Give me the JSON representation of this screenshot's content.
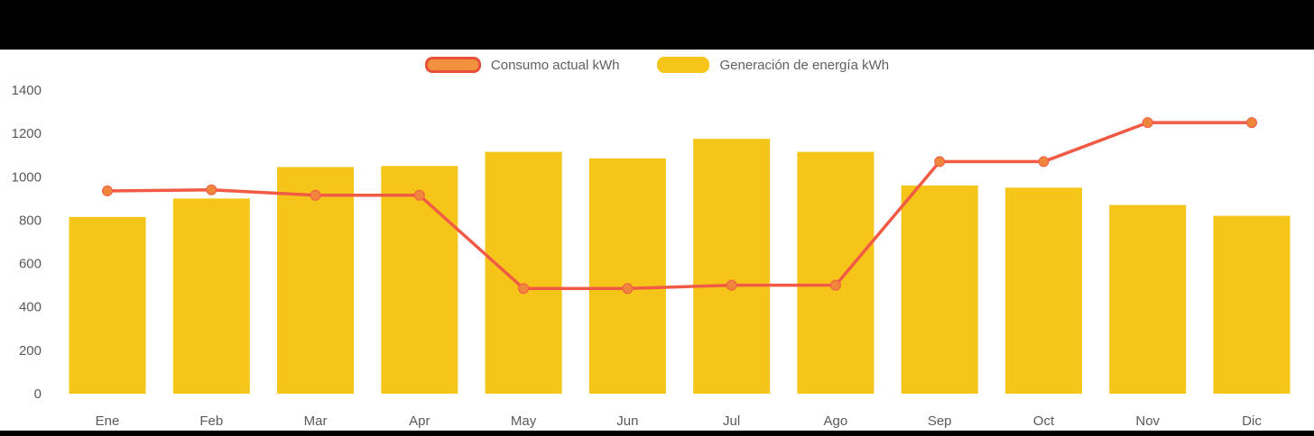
{
  "chart_data": {
    "type": "bar",
    "subtype": "bar+line combo",
    "categories": [
      "Ene",
      "Feb",
      "Mar",
      "Apr",
      "May",
      "Jun",
      "Jul",
      "Ago",
      "Sep",
      "Oct",
      "Nov",
      "Dic"
    ],
    "series": [
      {
        "name": "Consumo actual kWh",
        "type": "line",
        "values": [
          935,
          940,
          915,
          915,
          485,
          485,
          500,
          500,
          1070,
          1070,
          1250,
          1250
        ],
        "color": "#F15B46",
        "marker_color": "#F0863C"
      },
      {
        "name": "Generación de energía kWh",
        "type": "bar",
        "values": [
          815,
          900,
          1045,
          1050,
          1115,
          1085,
          1175,
          1115,
          960,
          950,
          870,
          820
        ],
        "color": "#F5C51A"
      }
    ],
    "title": "",
    "xlabel": "",
    "ylabel": "",
    "ylim": [
      0,
      1400
    ],
    "yticks": [
      0,
      200,
      400,
      600,
      800,
      1000,
      1200,
      1400
    ],
    "grid": false,
    "legend_position": "top-center"
  },
  "legend": {
    "consumo_label": "Consumo actual kWh",
    "generacion_label": "Generación de energía kWh"
  },
  "colors": {
    "bar": "#F5C51A",
    "line": "#F15B46",
    "marker": "#F0863C",
    "legend_consumo_fill": "#F2913D",
    "legend_consumo_border": "#E8503A",
    "axis_text": "#595959",
    "band_background": "#000000",
    "chart_background": "#FFFFFF"
  }
}
